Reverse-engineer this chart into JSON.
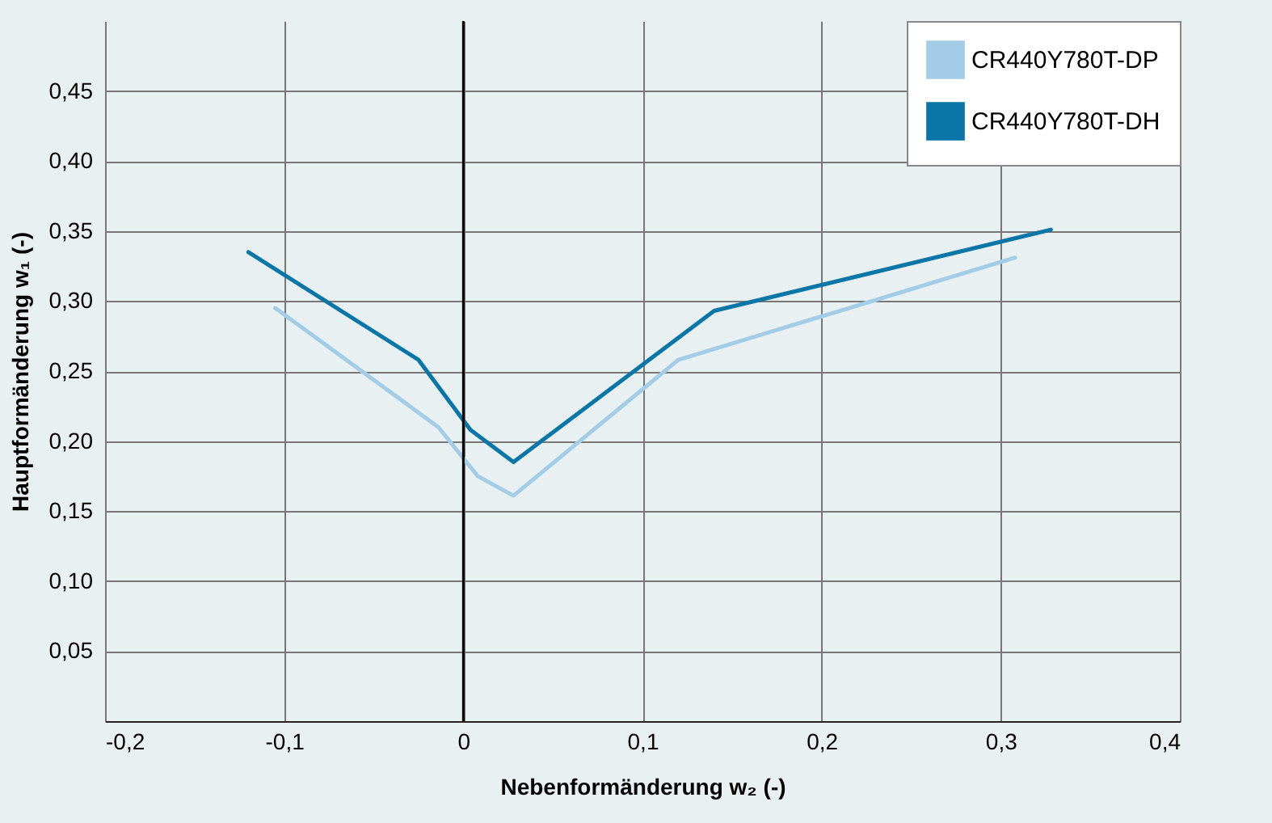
{
  "chart_data": {
    "type": "line",
    "xlabel": "Nebenformänderung w₂ (-)",
    "ylabel": "Hauptformänderung w₁ (-)",
    "xlim": [
      -0.2,
      0.4
    ],
    "ylim": [
      0,
      0.5
    ],
    "xticks": [
      {
        "value": -0.2,
        "label": "-0,2"
      },
      {
        "value": -0.1,
        "label": "-0,1"
      },
      {
        "value": 0,
        "label": "0"
      },
      {
        "value": 0.1,
        "label": "0,1"
      },
      {
        "value": 0.2,
        "label": "0,2"
      },
      {
        "value": 0.3,
        "label": "0,3"
      },
      {
        "value": 0.4,
        "label": "0,4"
      }
    ],
    "yticks": [
      {
        "value": 0.05,
        "label": "0,05"
      },
      {
        "value": 0.1,
        "label": "0,10"
      },
      {
        "value": 0.15,
        "label": "0,15"
      },
      {
        "value": 0.2,
        "label": "0,20"
      },
      {
        "value": 0.25,
        "label": "0,25"
      },
      {
        "value": 0.3,
        "label": "0,30"
      },
      {
        "value": 0.35,
        "label": "0,35"
      },
      {
        "value": 0.4,
        "label": "0,40"
      },
      {
        "value": 0.45,
        "label": "0,45"
      }
    ],
    "grid": true,
    "legend": "top right",
    "marker": "none",
    "line_style": "solid",
    "ref_lines": [
      {
        "axis": "x",
        "value": 0,
        "color": "#000000"
      }
    ],
    "series": [
      {
        "name": "CR440Y780T-DP",
        "color": "#a3cde6",
        "x": [
          -0.105,
          -0.014,
          0.008,
          0.028,
          0.12,
          0.308
        ],
        "values": [
          0.295,
          0.21,
          0.175,
          0.161,
          0.258,
          0.331
        ]
      },
      {
        "name": "CR440Y780T-DH",
        "color": "#0a76a8",
        "x": [
          -0.12,
          -0.025,
          0.004,
          0.028,
          0.14,
          0.328
        ],
        "values": [
          0.335,
          0.258,
          0.208,
          0.185,
          0.293,
          0.351
        ]
      }
    ]
  }
}
